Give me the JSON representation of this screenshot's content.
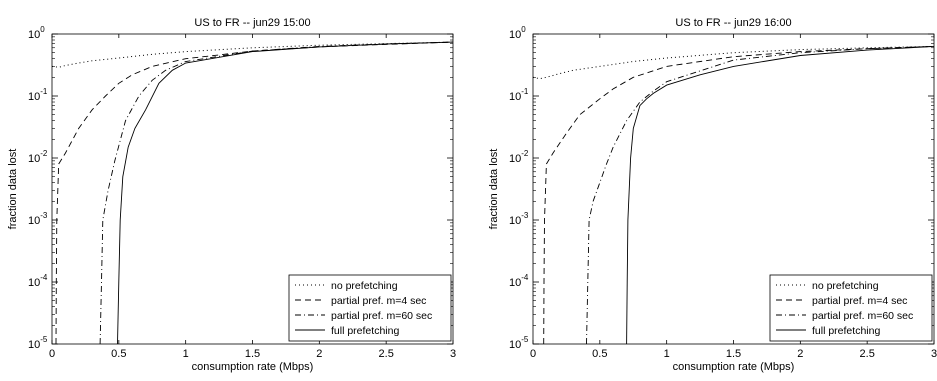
{
  "chart_data": [
    {
      "type": "line",
      "title": "US to FR -- jun29 15:00",
      "xlabel": "consumption rate (Mbps)",
      "ylabel": "fraction data lost",
      "xlim": [
        0,
        3
      ],
      "ylim": [
        1e-05,
        1
      ],
      "yscale": "log",
      "grid": false,
      "legend_position": "bottom-right",
      "x_ticks": [
        "0",
        "0.5",
        "1",
        "1.5",
        "2",
        "2.5",
        "3"
      ],
      "y_ticks": [
        {
          "base": "10",
          "exp": "-5"
        },
        {
          "base": "10",
          "exp": "-4"
        },
        {
          "base": "10",
          "exp": "-3"
        },
        {
          "base": "10",
          "exp": "-2"
        },
        {
          "base": "10",
          "exp": "-1"
        },
        {
          "base": "10",
          "exp": "0"
        }
      ],
      "series": [
        {
          "name": "no prefetching",
          "style": "dotted",
          "points": [
            [
              0.0,
              0.3
            ],
            [
              0.05,
              0.29
            ],
            [
              0.1,
              0.31
            ],
            [
              0.2,
              0.34
            ],
            [
              0.3,
              0.37
            ],
            [
              0.5,
              0.41
            ],
            [
              0.75,
              0.47
            ],
            [
              1.0,
              0.52
            ],
            [
              1.5,
              0.6
            ],
            [
              2.0,
              0.66
            ],
            [
              2.5,
              0.7
            ],
            [
              3.0,
              0.74
            ]
          ]
        },
        {
          "name": "partial pref. m=4 sec",
          "style": "dashed",
          "points": [
            [
              0.03,
              1e-05
            ],
            [
              0.032,
              0.0001
            ],
            [
              0.036,
              0.001
            ],
            [
              0.05,
              0.008
            ],
            [
              0.1,
              0.012
            ],
            [
              0.2,
              0.03
            ],
            [
              0.3,
              0.06
            ],
            [
              0.4,
              0.1
            ],
            [
              0.5,
              0.16
            ],
            [
              0.6,
              0.22
            ],
            [
              0.75,
              0.3
            ],
            [
              1.0,
              0.4
            ],
            [
              1.5,
              0.53
            ],
            [
              2.0,
              0.62
            ],
            [
              2.5,
              0.68
            ],
            [
              3.0,
              0.74
            ]
          ]
        },
        {
          "name": "partial pref. m=60 sec",
          "style": "dashdot",
          "points": [
            [
              0.36,
              1e-05
            ],
            [
              0.37,
              0.0001
            ],
            [
              0.38,
              0.001
            ],
            [
              0.42,
              0.003
            ],
            [
              0.47,
              0.009
            ],
            [
              0.55,
              0.04
            ],
            [
              0.65,
              0.1
            ],
            [
              0.75,
              0.18
            ],
            [
              0.85,
              0.26
            ],
            [
              1.0,
              0.36
            ],
            [
              1.5,
              0.53
            ],
            [
              2.0,
              0.63
            ],
            [
              2.5,
              0.69
            ],
            [
              3.0,
              0.74
            ]
          ]
        },
        {
          "name": "full prefetching",
          "style": "solid",
          "points": [
            [
              0.49,
              1e-05
            ],
            [
              0.5,
              0.0001
            ],
            [
              0.51,
              0.001
            ],
            [
              0.53,
              0.005
            ],
            [
              0.57,
              0.015
            ],
            [
              0.62,
              0.03
            ],
            [
              0.7,
              0.06
            ],
            [
              0.8,
              0.16
            ],
            [
              0.9,
              0.26
            ],
            [
              1.0,
              0.34
            ],
            [
              1.5,
              0.52
            ],
            [
              2.0,
              0.62
            ],
            [
              2.5,
              0.69
            ],
            [
              3.0,
              0.74
            ]
          ]
        }
      ]
    },
    {
      "type": "line",
      "title": "US to FR -- jun29 16:00",
      "xlabel": "consumption rate (Mbps)",
      "ylabel": "fraction data lost",
      "xlim": [
        0,
        3
      ],
      "ylim": [
        1e-05,
        1
      ],
      "yscale": "log",
      "grid": false,
      "legend_position": "bottom-right",
      "x_ticks": [
        "0",
        "0.5",
        "1",
        "1.5",
        "2",
        "2.5",
        "3"
      ],
      "y_ticks": [
        {
          "base": "10",
          "exp": "-5"
        },
        {
          "base": "10",
          "exp": "-4"
        },
        {
          "base": "10",
          "exp": "-3"
        },
        {
          "base": "10",
          "exp": "-2"
        },
        {
          "base": "10",
          "exp": "-1"
        },
        {
          "base": "10",
          "exp": "0"
        }
      ],
      "series": [
        {
          "name": "no prefetching",
          "style": "dotted",
          "points": [
            [
              0.0,
              0.2
            ],
            [
              0.05,
              0.19
            ],
            [
              0.1,
              0.2
            ],
            [
              0.2,
              0.23
            ],
            [
              0.3,
              0.26
            ],
            [
              0.5,
              0.3
            ],
            [
              0.75,
              0.36
            ],
            [
              1.0,
              0.41
            ],
            [
              1.5,
              0.5
            ],
            [
              2.0,
              0.56
            ],
            [
              2.5,
              0.6
            ],
            [
              3.0,
              0.63
            ]
          ]
        },
        {
          "name": "partial pref. m=4 sec",
          "style": "dashed",
          "points": [
            [
              0.08,
              1e-05
            ],
            [
              0.082,
              0.0001
            ],
            [
              0.086,
              0.001
            ],
            [
              0.1,
              0.008
            ],
            [
              0.15,
              0.012
            ],
            [
              0.25,
              0.025
            ],
            [
              0.35,
              0.05
            ],
            [
              0.5,
              0.09
            ],
            [
              0.6,
              0.13
            ],
            [
              0.75,
              0.2
            ],
            [
              1.0,
              0.3
            ],
            [
              1.5,
              0.43
            ],
            [
              2.0,
              0.52
            ],
            [
              2.5,
              0.58
            ],
            [
              3.0,
              0.63
            ]
          ]
        },
        {
          "name": "partial pref. m=60 sec",
          "style": "dashdot",
          "points": [
            [
              0.4,
              1e-05
            ],
            [
              0.41,
              0.0001
            ],
            [
              0.42,
              0.001
            ],
            [
              0.45,
              0.002
            ],
            [
              0.5,
              0.004
            ],
            [
              0.55,
              0.008
            ],
            [
              0.6,
              0.015
            ],
            [
              0.7,
              0.04
            ],
            [
              0.8,
              0.08
            ],
            [
              0.9,
              0.12
            ],
            [
              1.0,
              0.17
            ],
            [
              1.5,
              0.38
            ],
            [
              2.0,
              0.5
            ],
            [
              2.5,
              0.58
            ],
            [
              3.0,
              0.63
            ]
          ]
        },
        {
          "name": "full prefetching",
          "style": "solid",
          "points": [
            [
              0.7,
              1e-05
            ],
            [
              0.705,
              0.0001
            ],
            [
              0.71,
              0.001
            ],
            [
              0.73,
              0.01
            ],
            [
              0.75,
              0.03
            ],
            [
              0.8,
              0.07
            ],
            [
              0.85,
              0.09
            ],
            [
              0.9,
              0.11
            ],
            [
              1.0,
              0.15
            ],
            [
              1.25,
              0.22
            ],
            [
              1.5,
              0.3
            ],
            [
              2.0,
              0.45
            ],
            [
              2.5,
              0.55
            ],
            [
              3.0,
              0.63
            ]
          ]
        }
      ]
    }
  ]
}
